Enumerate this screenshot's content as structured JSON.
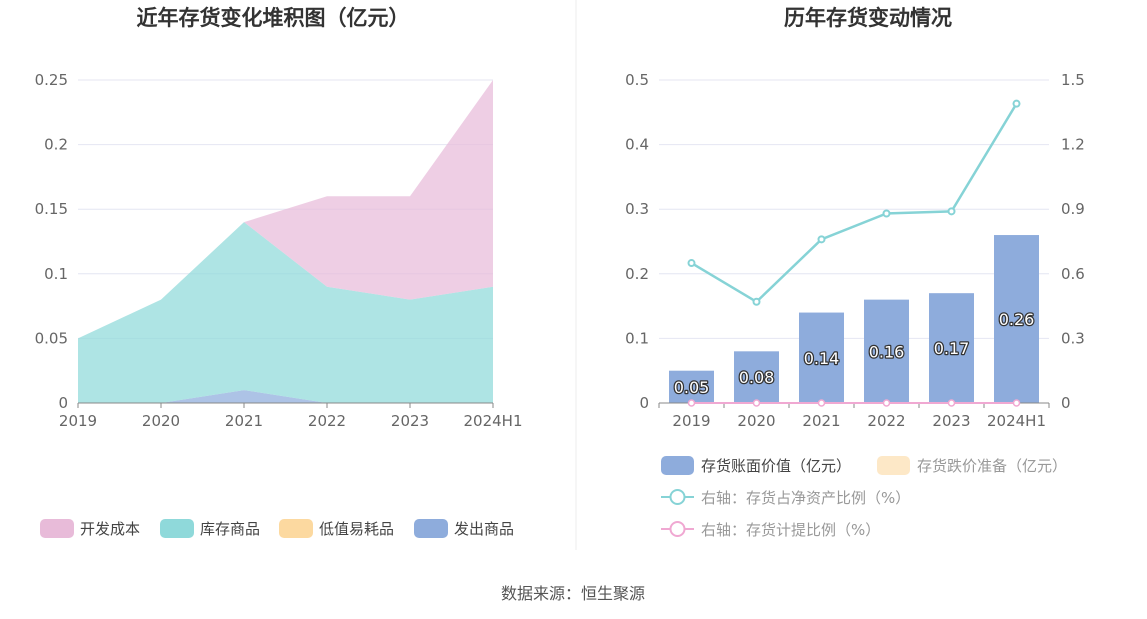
{
  "source_text": "数据来源：恒生聚源",
  "colors": {
    "dev_cost": "#e8bbd9",
    "inventory_goods": "#8fd9da",
    "low_value": "#fcd9a0",
    "shipped_goods": "#8eacdc",
    "bar": "#8eacdc",
    "impairment": "#fde8c7",
    "ratio_line": "#86d3d6",
    "provision_line": "#f0a8d2"
  },
  "chart_data": [
    {
      "type": "area",
      "stacked": true,
      "title": "近年存货变化堆积图（亿元）",
      "categories": [
        "2019",
        "2020",
        "2021",
        "2022",
        "2023",
        "2024H1"
      ],
      "ylim": [
        0,
        0.25
      ],
      "yticks": [
        "0",
        "0.05",
        "0.1",
        "0.15",
        "0.2",
        "0.25"
      ],
      "grid": true,
      "legend_position": "bottom",
      "series": [
        {
          "name": "发出商品",
          "values": [
            0,
            0,
            0.01,
            0,
            0,
            0
          ]
        },
        {
          "name": "低值易耗品",
          "values": [
            0,
            0,
            0,
            0,
            0,
            0
          ]
        },
        {
          "name": "库存商品",
          "values": [
            0.05,
            0.08,
            0.13,
            0.09,
            0.08,
            0.09
          ]
        },
        {
          "name": "开发成本",
          "values": [
            0,
            0,
            0,
            0.07,
            0.08,
            0.16
          ]
        }
      ],
      "legend": [
        "开发成本",
        "库存商品",
        "低值易耗品",
        "发出商品"
      ]
    },
    {
      "type": "bar",
      "title": "历年存货变动情况",
      "categories": [
        "2019",
        "2020",
        "2021",
        "2022",
        "2023",
        "2024H1"
      ],
      "ylim": [
        0,
        0.5
      ],
      "yticks": [
        "0",
        "0.1",
        "0.2",
        "0.3",
        "0.4",
        "0.5"
      ],
      "y2lim": [
        0,
        1.5
      ],
      "y2ticks": [
        "0",
        "0.3",
        "0.6",
        "0.9",
        "1.2",
        "1.5"
      ],
      "grid": true,
      "legend_position": "bottom",
      "series": [
        {
          "name": "存货账面价值（亿元）",
          "type": "bar",
          "values": [
            0.05,
            0.08,
            0.14,
            0.16,
            0.17,
            0.26
          ],
          "labels": [
            "0.05",
            "0.08",
            "0.14",
            "0.16",
            "0.17",
            "0.26"
          ]
        },
        {
          "name": "存货跌价准备（亿元）",
          "type": "bar",
          "values": [
            0,
            0,
            0,
            0,
            0,
            0
          ]
        },
        {
          "name": "右轴：存货占净资产比例（%）",
          "type": "line",
          "axis": "right",
          "values": [
            0.65,
            0.47,
            0.76,
            0.88,
            0.89,
            1.39
          ]
        },
        {
          "name": "右轴：存货计提比例（%）",
          "type": "line",
          "axis": "right",
          "values": [
            0,
            0,
            0,
            0,
            0,
            0
          ]
        }
      ]
    }
  ]
}
